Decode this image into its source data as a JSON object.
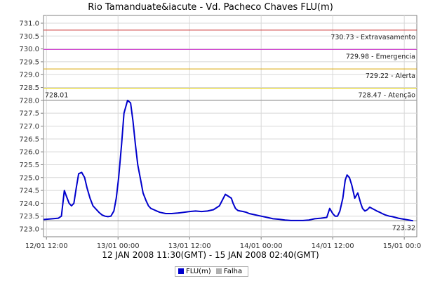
{
  "chart_data": {
    "type": "line",
    "title": "Rio Tamanduate&iacute - Vd. Pacheco Chaves FLU(m)",
    "subtitle": "12 JAN 2008 11:30(GMT) - 15 JAN 2008 02:40(GMT)",
    "xlabel": "",
    "ylabel": "",
    "ylim": [
      722.7,
      731.3
    ],
    "xlim": [
      0.5,
      63.1
    ],
    "grid": true,
    "x_ticks": [
      {
        "x": 1.0,
        "label": "12/01 12:00"
      },
      {
        "x": 13.0,
        "label": "13/01 00:00"
      },
      {
        "x": 25.0,
        "label": "13/01 12:00"
      },
      {
        "x": 37.0,
        "label": "14/01 00:00"
      },
      {
        "x": 49.0,
        "label": "14/01 12:00"
      },
      {
        "x": 61.0,
        "label": "15/01 00:00"
      }
    ],
    "y_ticks": [
      {
        "y": 723.0,
        "label": "723.0"
      },
      {
        "y": 723.5,
        "label": "723.5"
      },
      {
        "y": 724.0,
        "label": "724.0"
      },
      {
        "y": 724.5,
        "label": "724.5"
      },
      {
        "y": 725.0,
        "label": "725.0"
      },
      {
        "y": 725.5,
        "label": "725.5"
      },
      {
        "y": 726.0,
        "label": "726.0"
      },
      {
        "y": 726.5,
        "label": "726.5"
      },
      {
        "y": 727.0,
        "label": "727.0"
      },
      {
        "y": 727.5,
        "label": "727.5"
      },
      {
        "y": 728.0,
        "label": "728.0"
      },
      {
        "y": 728.5,
        "label": "728.5"
      },
      {
        "y": 729.0,
        "label": "729.0"
      },
      {
        "y": 729.5,
        "label": "729.5"
      },
      {
        "y": 730.0,
        "label": "730.0"
      },
      {
        "y": 730.5,
        "label": "730.5"
      },
      {
        "y": 731.0,
        "label": "731.0"
      }
    ],
    "thresholds": [
      {
        "value": 730.73,
        "label": "730.73 - Extravasamento",
        "color": "#cc3333"
      },
      {
        "value": 729.98,
        "label": "729.98 - Emergencia",
        "color": "#cc33cc"
      },
      {
        "value": 729.22,
        "label": "729.22 - Alerta",
        "color": "#d9a400"
      },
      {
        "value": 728.47,
        "label": "728.47 - Atenção",
        "color": "#e6d200"
      },
      {
        "value": 728.01,
        "label": "728.01",
        "color": "#888888"
      },
      {
        "value": 723.32,
        "label": "723.32",
        "color": "#888888"
      }
    ],
    "series": [
      {
        "name": "FLU(m)",
        "color": "#0000cc",
        "x": [
          0.5,
          1.0,
          2.0,
          3.0,
          3.5,
          4.0,
          4.3,
          4.8,
          5.2,
          5.6,
          6.0,
          6.4,
          6.9,
          7.4,
          7.8,
          8.3,
          8.8,
          9.2,
          9.8,
          10.3,
          10.8,
          11.3,
          11.8,
          12.3,
          12.7,
          13.1,
          13.6,
          14.0,
          14.6,
          15.1,
          15.5,
          15.9,
          16.3,
          16.8,
          17.2,
          17.7,
          18.1,
          18.5,
          19.0,
          19.5,
          20.0,
          21.0,
          22.0,
          23.0,
          24.0,
          25.0,
          26.0,
          27.0,
          28.0,
          29.0,
          30.0,
          31.0,
          32.0,
          32.3,
          32.7,
          33.1,
          33.5,
          34.0,
          34.5,
          35.0,
          36.0,
          37.0,
          38.0,
          39.0,
          40.0,
          41.0,
          42.0,
          43.0,
          44.0,
          45.0,
          46.0,
          47.0,
          48.0,
          48.5,
          49.0,
          49.4,
          49.8,
          50.2,
          50.7,
          51.1,
          51.4,
          51.8,
          52.2,
          52.7,
          53.2,
          53.7,
          54.0,
          54.4,
          54.8,
          55.2,
          55.6,
          56.0,
          56.4,
          56.9,
          57.3,
          57.8,
          58.5,
          59.0,
          59.5,
          60.0,
          60.5,
          61.0,
          61.5,
          62.0,
          62.5
        ],
        "values": [
          723.37,
          723.38,
          723.4,
          723.42,
          723.5,
          724.5,
          724.3,
          724.0,
          723.9,
          724.0,
          724.6,
          725.15,
          725.2,
          725.0,
          724.6,
          724.2,
          723.9,
          723.8,
          723.65,
          723.55,
          723.5,
          723.48,
          723.5,
          723.7,
          724.2,
          725.0,
          726.3,
          727.5,
          728.0,
          727.9,
          727.2,
          726.3,
          725.5,
          724.9,
          724.4,
          724.1,
          723.9,
          723.8,
          723.75,
          723.7,
          723.65,
          723.6,
          723.6,
          723.62,
          723.65,
          723.68,
          723.7,
          723.68,
          723.7,
          723.75,
          723.9,
          724.35,
          724.2,
          724.0,
          723.8,
          723.72,
          723.7,
          723.68,
          723.65,
          723.6,
          723.55,
          723.5,
          723.45,
          723.4,
          723.38,
          723.35,
          723.33,
          723.33,
          723.33,
          723.35,
          723.4,
          723.42,
          723.45,
          723.8,
          723.6,
          723.5,
          723.5,
          723.7,
          724.2,
          724.9,
          725.1,
          725.0,
          724.7,
          724.2,
          724.4,
          724.0,
          723.8,
          723.7,
          723.75,
          723.85,
          723.8,
          723.75,
          723.7,
          723.65,
          723.6,
          723.55,
          723.5,
          723.48,
          723.45,
          723.42,
          723.4,
          723.38,
          723.36,
          723.34,
          723.32
        ]
      },
      {
        "name": "Falha",
        "color": "#b0b0b0",
        "x": [],
        "values": []
      }
    ],
    "legend": {
      "position": "bottom",
      "entries": [
        {
          "label": "FLU(m)",
          "color": "#0000cc"
        },
        {
          "label": "Falha",
          "color": "#b0b0b0"
        }
      ]
    }
  }
}
